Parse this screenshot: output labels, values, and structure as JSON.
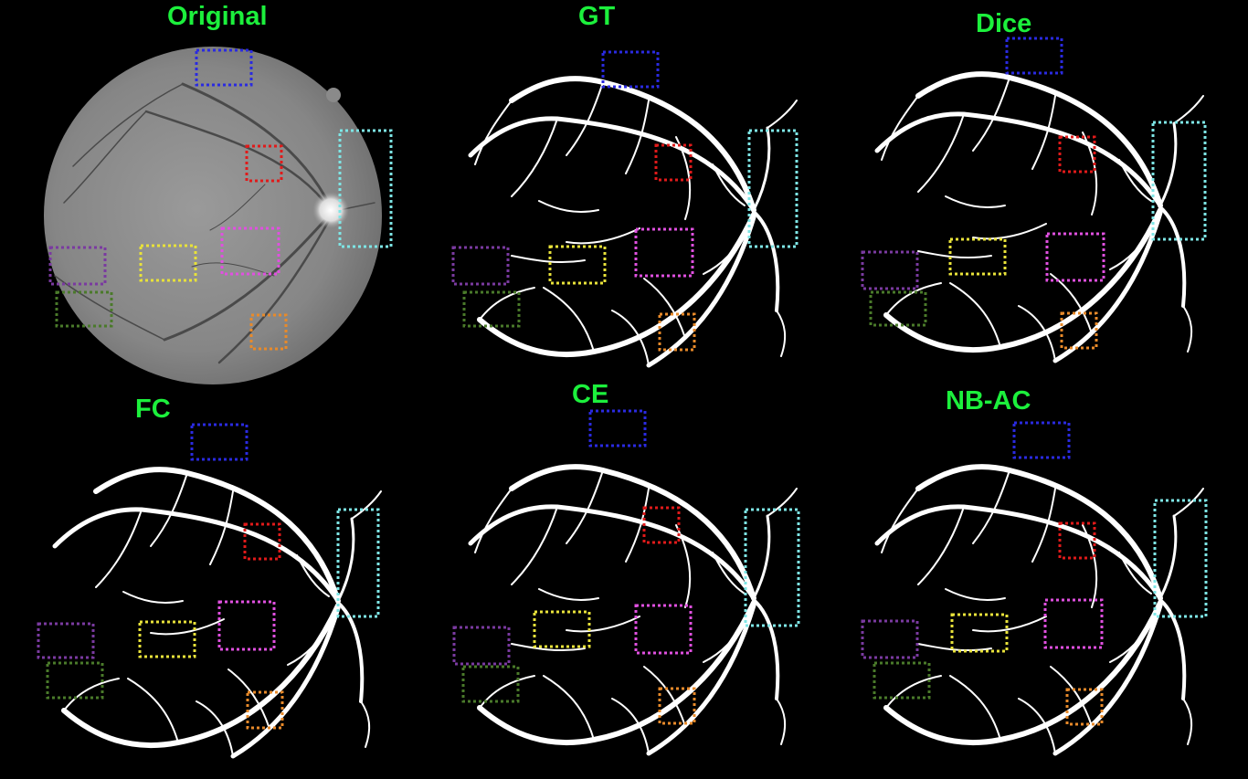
{
  "figure": {
    "panels": [
      {
        "id": "original",
        "title": "Original",
        "kind": "fundus-photo"
      },
      {
        "id": "gt",
        "title": "GT",
        "kind": "vessel-segmentation"
      },
      {
        "id": "dice",
        "title": "Dice",
        "kind": "vessel-segmentation"
      },
      {
        "id": "fc",
        "title": "FC",
        "kind": "vessel-segmentation"
      },
      {
        "id": "ce",
        "title": "CE",
        "kind": "vessel-segmentation"
      },
      {
        "id": "nbac",
        "title": "NB-AC",
        "kind": "vessel-segmentation"
      }
    ],
    "highlight_boxes": [
      {
        "name": "blue",
        "color": "#2a2ae0"
      },
      {
        "name": "red",
        "color": "#e01a1a"
      },
      {
        "name": "cyan",
        "color": "#7ee6e6"
      },
      {
        "name": "magenta",
        "color": "#e050e0"
      },
      {
        "name": "yellow",
        "color": "#e8e23a"
      },
      {
        "name": "purple",
        "color": "#7a3aa0"
      },
      {
        "name": "green",
        "color": "#4a7a2a"
      },
      {
        "name": "orange",
        "color": "#e88a2a"
      }
    ],
    "colors": {
      "background": "#000000",
      "label": "#1cf03c",
      "vessel": "#ffffff",
      "fundus": "#8a8a8a"
    }
  }
}
